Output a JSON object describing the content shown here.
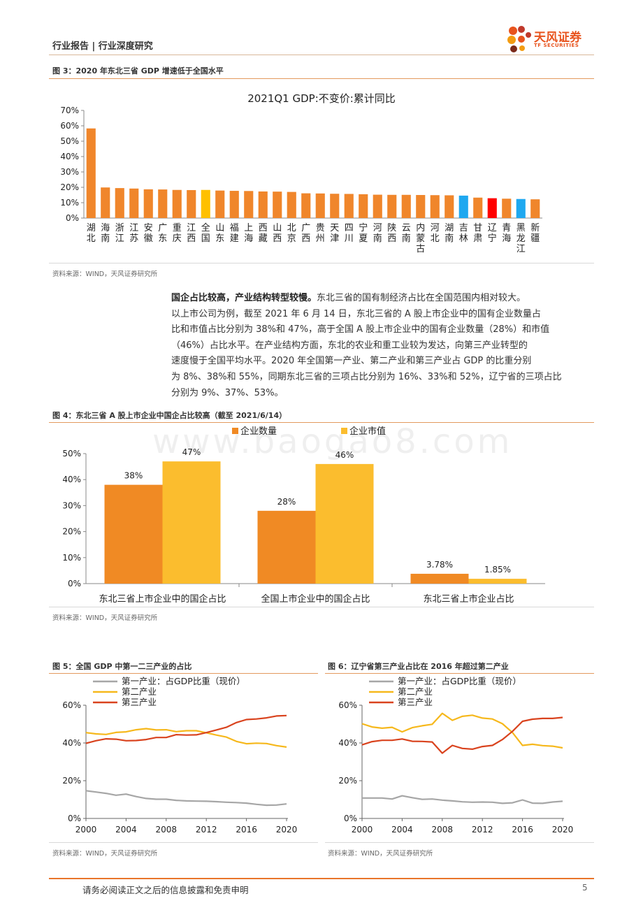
{
  "header": {
    "section": "行业报告 | 行业深度研究",
    "brand_name": "天风证券",
    "brand_sub": "TF SECURITIES"
  },
  "watermark": "www.baogao8.com",
  "figure3": {
    "title": "图 3：2020 年东北三省 GDP 增速低于全国水平",
    "source": "资料来源：WIND，天风证券研究所"
  },
  "paragraph": {
    "lead": "国企占比较高，产业结构转型较慢。",
    "lines": [
      "东北三省的国有制经济占比在全国范围内相对较大。",
      "以上市公司为例，截至 2021 年 6 月 14 日，东北三省的 A 股上市企业中的国有企业数量占",
      "比和市值占比分别为 38%和 47%，高于全国 A 股上市企业中的国有企业数量（28%）和市值",
      "（46%）占比水平。在产业结构方面，东北的农业和重工业较为发达，向第三产业转型的",
      "速度慢于全国平均水平。2020 年全国第一产业、第二产业和第三产业占 GDP 的比重分别",
      "为 8%、38%和 55%，同期东北三省的三项占比分别为 16%、33%和 52%，辽宁省的三项占比",
      "分别为 9%、37%、53%。"
    ]
  },
  "figure4": {
    "title": "图 4：东北三省 A 股上市企业中国企占比较高（截至 2021/6/14）",
    "source": "资料来源：WIND，天风证券研究所"
  },
  "figure5": {
    "title": "图 5：全国 GDP 中第一二三产业的占比",
    "source": "资料来源：WIND，天风证券研究所"
  },
  "figure6": {
    "title": "图 6：辽宁省第三产业占比在 2016 年超过第二产业",
    "source": "资料来源：WIND，天风证券研究所"
  },
  "footer": {
    "disclaimer": "请务必阅读正文之后的信息披露和免责申明",
    "page": "5"
  },
  "chart_data": [
    {
      "id": "fig3",
      "type": "bar",
      "title": "2021Q1 GDP:不变价:累计同比",
      "categories": [
        "湖北",
        "海南",
        "浙江",
        "江苏",
        "安徽",
        "广东",
        "重庆",
        "江西",
        "全国",
        "山东",
        "福建",
        "上海",
        "西藏",
        "山西",
        "北京",
        "广西",
        "贵州",
        "天津",
        "四川",
        "宁夏",
        "河南",
        "陕西",
        "云南",
        "内蒙古",
        "河北",
        "湖南",
        "吉林",
        "甘肃",
        "辽宁",
        "青海",
        "黑龙江",
        "新疆"
      ],
      "values": [
        58.3,
        19.9,
        19.5,
        19.2,
        18.7,
        18.6,
        18.3,
        18.2,
        18.3,
        17.9,
        17.7,
        17.6,
        17.3,
        17.2,
        17.0,
        16.1,
        16.0,
        15.8,
        15.7,
        15.5,
        15.2,
        15.1,
        15.1,
        15.0,
        14.9,
        14.8,
        14.6,
        13.3,
        12.9,
        12.6,
        12.4,
        12.2
      ],
      "colors": [
        "#f0862b",
        "#f0862b",
        "#f0862b",
        "#f0862b",
        "#f0862b",
        "#f0862b",
        "#f0862b",
        "#f0862b",
        "#ffc000",
        "#f0862b",
        "#f0862b",
        "#f0862b",
        "#f0862b",
        "#f0862b",
        "#f0862b",
        "#f0862b",
        "#f0862b",
        "#f0862b",
        "#f0862b",
        "#f0862b",
        "#f0862b",
        "#f0862b",
        "#f0862b",
        "#f0862b",
        "#f0862b",
        "#f0862b",
        "#1ea8f0",
        "#f0862b",
        "#ff0000",
        "#f0862b",
        "#1ea8f0",
        "#f0862b"
      ],
      "yticks": [
        "0%",
        "10%",
        "20%",
        "30%",
        "40%",
        "50%",
        "60%",
        "70%"
      ],
      "ylim": [
        0,
        70
      ]
    },
    {
      "id": "fig4",
      "type": "bar",
      "categories": [
        "东北三省上市企业中的国企占比",
        "全国上市企业中的国企占比",
        "东北三省上市企业占比"
      ],
      "series": [
        {
          "name": "企业数量",
          "color": "#f08a24",
          "values": [
            38,
            28,
            3.78
          ],
          "labels": [
            "38%",
            "28%",
            "3.78%"
          ]
        },
        {
          "name": "企业市值",
          "color": "#fbbd2e",
          "values": [
            47,
            46,
            1.85
          ],
          "labels": [
            "47%",
            "46%",
            "1.85%"
          ]
        }
      ],
      "yticks": [
        "0%",
        "10%",
        "20%",
        "30%",
        "40%",
        "50%"
      ],
      "ylim": [
        0,
        50
      ]
    },
    {
      "id": "fig5",
      "type": "line",
      "x": [
        2000,
        2001,
        2002,
        2003,
        2004,
        2005,
        2006,
        2007,
        2008,
        2009,
        2010,
        2011,
        2012,
        2013,
        2014,
        2015,
        2016,
        2017,
        2018,
        2019,
        2020
      ],
      "series": [
        {
          "name": "第一产业：占GDP比重（现价）",
          "color": "#a6a6a6",
          "values": [
            14.7,
            14.0,
            13.3,
            12.3,
            12.9,
            11.6,
            10.6,
            10.2,
            10.2,
            9.6,
            9.3,
            9.2,
            9.1,
            8.9,
            8.6,
            8.4,
            8.1,
            7.5,
            7.0,
            7.1,
            7.7
          ]
        },
        {
          "name": "第二产业",
          "color": "#f6b81c",
          "values": [
            45.5,
            44.8,
            44.5,
            45.6,
            45.9,
            47.0,
            47.6,
            46.9,
            47.0,
            46.0,
            46.5,
            46.5,
            45.4,
            44.2,
            43.1,
            40.8,
            39.6,
            39.9,
            39.7,
            38.6,
            37.8
          ]
        },
        {
          "name": "第三产业",
          "color": "#d9431e",
          "values": [
            39.8,
            41.2,
            42.2,
            42.0,
            41.2,
            41.3,
            41.8,
            42.9,
            42.9,
            44.4,
            44.2,
            44.3,
            45.5,
            46.9,
            48.3,
            50.8,
            52.4,
            52.7,
            53.3,
            54.3,
            54.5
          ]
        }
      ],
      "xticks": [
        "2000",
        "2004",
        "2008",
        "2012",
        "2016",
        "2020"
      ],
      "yticks": [
        "0%",
        "20%",
        "40%",
        "60%"
      ],
      "ylim": [
        0,
        60
      ]
    },
    {
      "id": "fig6",
      "type": "line",
      "x": [
        2000,
        2001,
        2002,
        2003,
        2004,
        2005,
        2006,
        2007,
        2008,
        2009,
        2010,
        2011,
        2012,
        2013,
        2014,
        2015,
        2016,
        2017,
        2018,
        2019,
        2020
      ],
      "series": [
        {
          "name": "第一产业：占GDP比重（现价）",
          "color": "#a6a6a6",
          "values": [
            10.8,
            10.8,
            10.8,
            10.3,
            12.0,
            11.0,
            10.1,
            10.3,
            9.7,
            9.3,
            8.8,
            8.6,
            8.7,
            8.6,
            8.0,
            8.3,
            9.8,
            8.1,
            8.0,
            8.7,
            9.1
          ]
        },
        {
          "name": "第二产业",
          "color": "#f6b81c",
          "values": [
            50.2,
            48.5,
            47.8,
            48.3,
            45.9,
            48.1,
            49.1,
            49.9,
            55.7,
            52.0,
            54.1,
            54.7,
            53.2,
            52.7,
            50.2,
            45.5,
            38.7,
            39.3,
            38.6,
            38.3,
            37.4
          ]
        },
        {
          "name": "第三产业",
          "color": "#d9431e",
          "values": [
            39.0,
            40.7,
            41.4,
            41.4,
            42.1,
            40.9,
            40.8,
            40.5,
            34.6,
            38.7,
            37.1,
            36.7,
            38.1,
            38.7,
            41.8,
            46.2,
            51.5,
            52.6,
            53.0,
            53.0,
            53.5
          ]
        }
      ],
      "xticks": [
        "2000",
        "2004",
        "2008",
        "2012",
        "2016",
        "2020"
      ],
      "yticks": [
        "0%",
        "20%",
        "40%",
        "60%"
      ],
      "ylim": [
        0,
        60
      ]
    }
  ]
}
